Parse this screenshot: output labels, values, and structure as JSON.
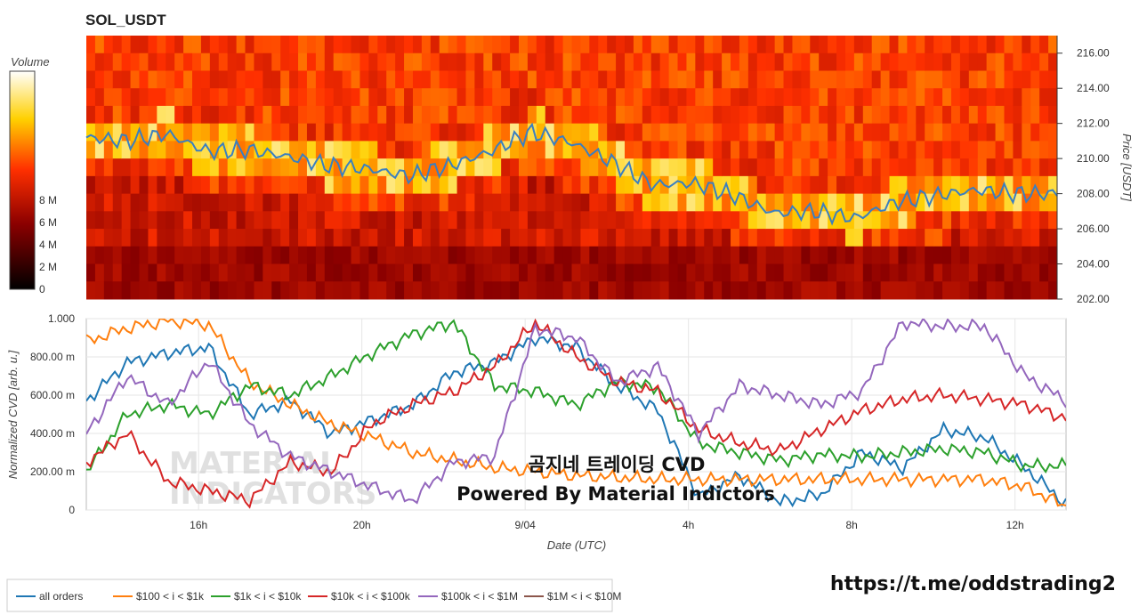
{
  "heatmap_panel": {
    "title": "SOL_USDT",
    "colorbar_title": "Volume",
    "colorbar_ticks": [
      "0",
      "2 M",
      "4 M",
      "6 M",
      "8 M"
    ],
    "y_axis_title": "Price [USDT]",
    "y_ticks": [
      "202.00",
      "204.00",
      "206.00",
      "208.00",
      "210.00",
      "212.00",
      "214.00",
      "216.00"
    ]
  },
  "cvd_panel": {
    "y_axis_title": "Normalized CVD [arb. u.]",
    "y_ticks": [
      "0",
      "200.00 m",
      "400.00 m",
      "600.00 m",
      "800.00 m",
      "1.000"
    ],
    "x_axis_title": "Date (UTC)",
    "x_ticks": [
      "16h",
      "20h",
      "9/04",
      "4h",
      "8h",
      "12h"
    ]
  },
  "overlay": {
    "line1": "곰지네 트레이딩 CVD",
    "line2": "Powered By Material Indictors"
  },
  "watermark": {
    "line1": "MATERIAL",
    "line2": "INDICATORS"
  },
  "url": "https://t.me/oddstrading2",
  "colors": {
    "all orders": "#1f77b4",
    "$100 < i < $1k": "#ff7f0e",
    "$1k < i < $10k": "#2ca02c",
    "$10k < i < $100k": "#d62728",
    "$100k < i < $1M": "#9467bd",
    "$1M < i < $10M": "#8c564b"
  },
  "chart_data": [
    {
      "type": "heatmap",
      "title": "SOL_USDT",
      "ylabel": "Price [USDT]",
      "colorbar_label": "Volume",
      "ylim": [
        202,
        217
      ],
      "price_series": {
        "x_hours": [
          0,
          1,
          2,
          3,
          4,
          5,
          6,
          7,
          8,
          9,
          10,
          11,
          12,
          13,
          14,
          15,
          16,
          17,
          18,
          19,
          20,
          21,
          22,
          23,
          24
        ],
        "price": [
          211.2,
          211.0,
          211.4,
          210.4,
          210.5,
          210.1,
          209.6,
          209.4,
          209.0,
          209.6,
          210.4,
          211.5,
          210.9,
          209.8,
          208.5,
          208.6,
          207.9,
          206.9,
          207.0,
          206.6,
          207.5,
          207.9,
          208.2,
          208.0,
          208.0
        ]
      }
    },
    {
      "type": "line",
      "xlabel": "Date (UTC)",
      "ylabel": "Normalized CVD [arb. u.]",
      "ylim": [
        0,
        1
      ],
      "x_hours": [
        0,
        1,
        2,
        3,
        4,
        5,
        6,
        7,
        8,
        9,
        10,
        11,
        12,
        13,
        14,
        15,
        16,
        17,
        18,
        19,
        20,
        21,
        22,
        23,
        24
      ],
      "series": [
        {
          "name": "all orders",
          "values": [
            0.57,
            0.77,
            0.82,
            0.85,
            0.5,
            0.57,
            0.4,
            0.47,
            0.55,
            0.72,
            0.77,
            0.9,
            0.85,
            0.65,
            0.52,
            0.07,
            0.18,
            0.04,
            0.08,
            0.3,
            0.22,
            0.42,
            0.38,
            0.22,
            0.03
          ]
        },
        {
          "name": "$100 < i < $1k",
          "values": [
            0.88,
            0.95,
            0.99,
            0.97,
            0.67,
            0.55,
            0.45,
            0.38,
            0.3,
            0.26,
            0.22,
            0.2,
            0.18,
            0.17,
            0.16,
            0.16,
            0.16,
            0.16,
            0.16,
            0.16,
            0.16,
            0.16,
            0.16,
            0.12,
            0.02
          ]
        },
        {
          "name": "$1k < i < $10k",
          "values": [
            0.2,
            0.5,
            0.55,
            0.5,
            0.65,
            0.6,
            0.7,
            0.82,
            0.92,
            0.98,
            0.65,
            0.62,
            0.55,
            0.67,
            0.64,
            0.35,
            0.3,
            0.26,
            0.29,
            0.28,
            0.3,
            0.32,
            0.3,
            0.23,
            0.23
          ]
        },
        {
          "name": "$10k < i < $100k",
          "values": [
            0.25,
            0.4,
            0.15,
            0.1,
            0.05,
            0.25,
            0.2,
            0.45,
            0.55,
            0.62,
            0.75,
            0.98,
            0.8,
            0.67,
            0.62,
            0.42,
            0.35,
            0.31,
            0.42,
            0.52,
            0.58,
            0.6,
            0.58,
            0.55,
            0.48
          ]
        },
        {
          "name": "$100k < i < $1M",
          "values": [
            0.4,
            0.7,
            0.55,
            0.78,
            0.45,
            0.28,
            0.2,
            0.12,
            0.05,
            0.25,
            0.28,
            0.95,
            0.9,
            0.67,
            0.75,
            0.4,
            0.65,
            0.6,
            0.55,
            0.62,
            0.98,
            0.96,
            0.96,
            0.7,
            0.57
          ]
        },
        {
          "name": "$1M < i < $10M",
          "values": []
        }
      ]
    }
  ]
}
